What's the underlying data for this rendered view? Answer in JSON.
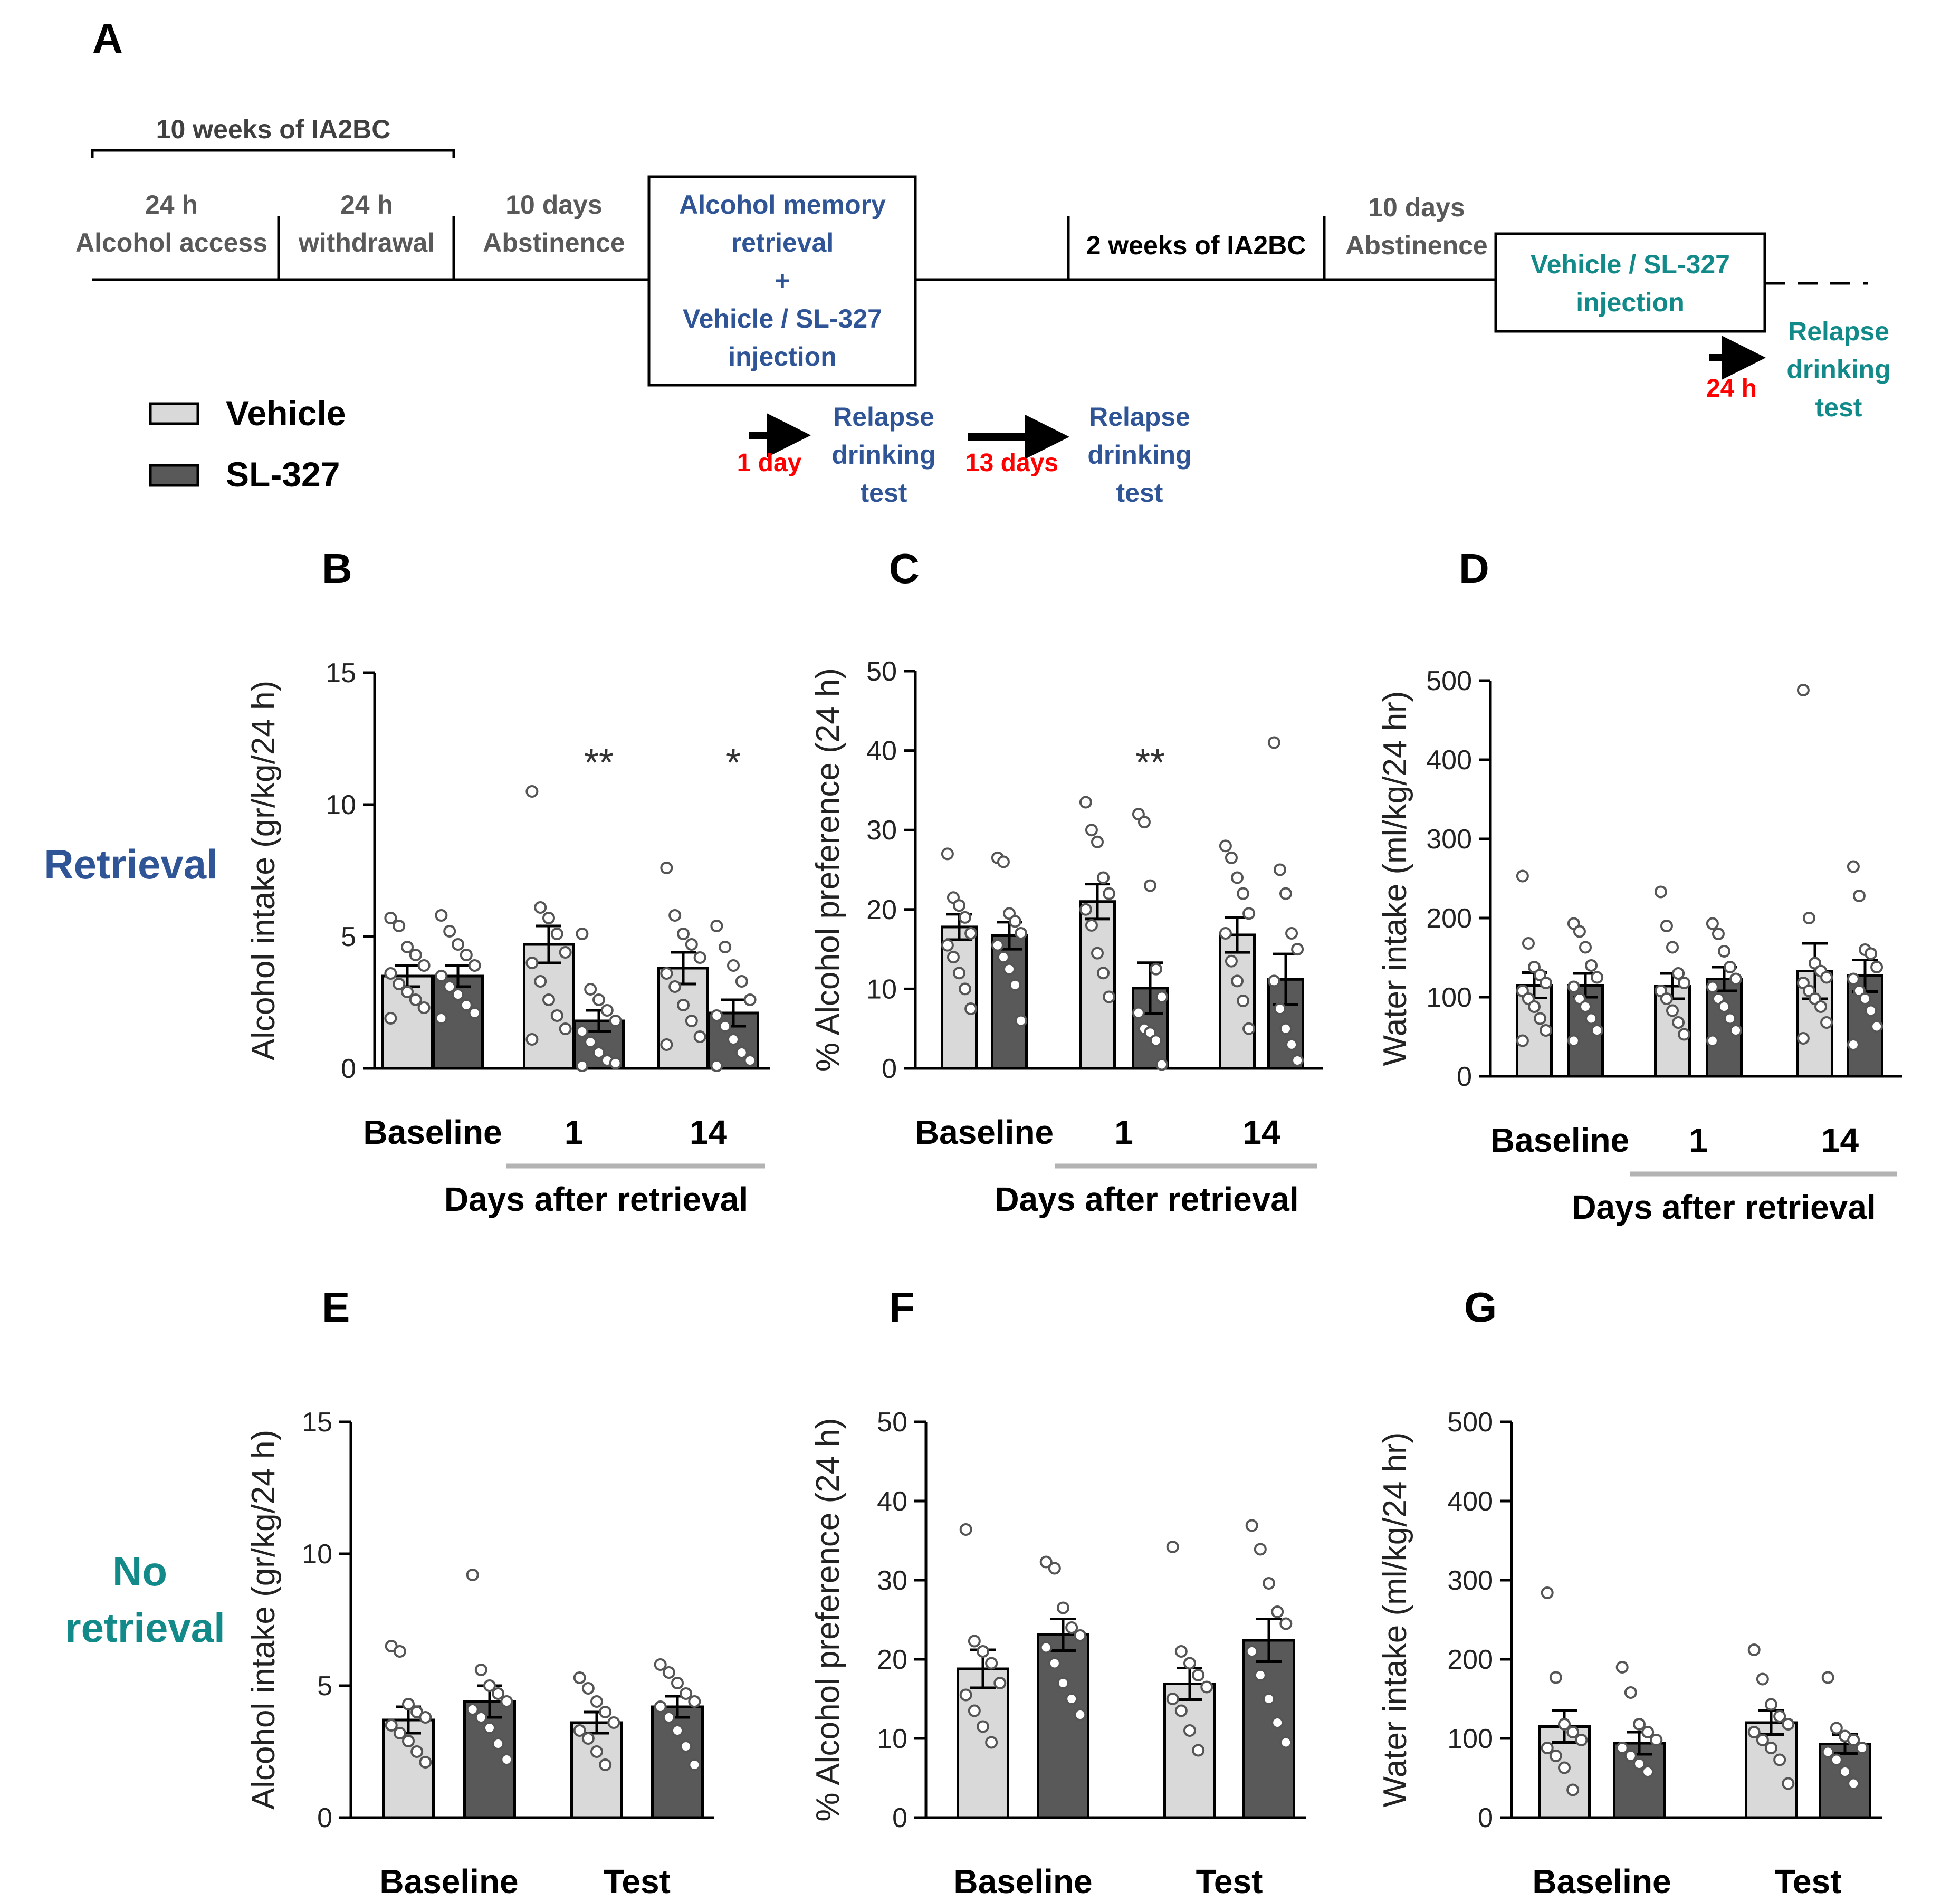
{
  "panel_a": {
    "label": "A",
    "bracket_label": "10 weeks of IA2BC",
    "phases": [
      {
        "line1": "24 h",
        "line2": "Alcohol access"
      },
      {
        "line1": "24 h",
        "line2": "withdrawal"
      },
      {
        "line1": "10 days",
        "line2": "Abstinence"
      }
    ],
    "retrieval_box": [
      "Alcohol memory",
      "retrieval",
      "+",
      "Vehicle / SL-327",
      "injection"
    ],
    "ia2bc2": "2 weeks of IA2BC",
    "abstinence2": {
      "line1": "10 days",
      "line2": "Abstinence"
    },
    "injection_box": [
      "Vehicle / SL-327",
      "injection"
    ],
    "arrow1": "1 day",
    "arrow2": "13 days",
    "arrow3": "24 h",
    "relapse_test": [
      "Relapse",
      "drinking",
      "test"
    ],
    "legend": [
      {
        "name": "Vehicle",
        "color": "#d9d9d9"
      },
      {
        "name": "SL-327",
        "color": "#595959"
      }
    ]
  },
  "row_labels": {
    "retrieval": "Retrieval",
    "no_retrieval_line1": "No",
    "no_retrieval_line2": "retrieval"
  },
  "colors": {
    "vehicle": "#d9d9d9",
    "sl327": "#595959",
    "retrieval_blue": "#2f5597",
    "teal": "#138a8a",
    "arrow_red": "#ff0000"
  },
  "chart_data": [
    {
      "panel": "B",
      "type": "bar",
      "title": "",
      "ylabel": "Alcohol intake (gr/kg/24 h)",
      "categories": [
        "Baseline",
        "1",
        "14"
      ],
      "xgroup_label": "Days after retrieval",
      "ylim": [
        0,
        15
      ],
      "yticks": [
        0,
        5,
        10,
        15
      ],
      "series": [
        {
          "name": "Vehicle",
          "values": [
            3.5,
            4.7,
            3.8
          ],
          "sem": [
            0.4,
            0.7,
            0.6
          ],
          "points": [
            [
              5.7,
              5.4,
              4.6,
              4.3,
              3.9,
              3.6,
              3.2,
              2.9,
              2.6,
              2.3,
              1.9
            ],
            [
              10.5,
              6.1,
              5.7,
              5.1,
              4.4,
              4.0,
              3.3,
              2.6,
              2.0,
              1.5,
              1.1
            ],
            [
              7.6,
              5.8,
              5.1,
              4.7,
              4.2,
              3.6,
              3.1,
              2.4,
              1.8,
              1.2,
              0.9
            ]
          ]
        },
        {
          "name": "SL-327",
          "values": [
            3.5,
            1.8,
            2.1
          ],
          "sem": [
            0.4,
            0.4,
            0.5
          ],
          "points": [
            [
              5.8,
              5.2,
              4.7,
              4.3,
              3.9,
              3.5,
              3.1,
              2.8,
              2.4,
              2.1,
              1.9
            ],
            [
              5.1,
              3.0,
              2.6,
              2.2,
              1.8,
              1.4,
              1.0,
              0.6,
              0.3,
              0.2,
              0.1
            ],
            [
              5.4,
              4.6,
              3.9,
              3.3,
              2.6,
              2.0,
              1.6,
              1.1,
              0.6,
              0.3,
              0.1
            ]
          ]
        }
      ],
      "annotations": [
        {
          "category": "1",
          "text": "**"
        },
        {
          "category": "14",
          "text": "*"
        }
      ]
    },
    {
      "panel": "C",
      "type": "bar",
      "title": "",
      "ylabel": "% Alcohol preference  (24 h)",
      "categories": [
        "Baseline",
        "1",
        "14"
      ],
      "xgroup_label": "Days after retrieval",
      "ylim": [
        0,
        50
      ],
      "yticks": [
        0,
        10,
        20,
        30,
        40,
        50
      ],
      "series": [
        {
          "name": "Vehicle",
          "values": [
            17.8,
            21.0,
            16.8
          ],
          "sem": [
            1.6,
            2.2,
            2.2
          ],
          "points": [
            [
              27.0,
              21.5,
              20.5,
              19.0,
              17.0,
              15.5,
              14.0,
              12.0,
              10.0,
              7.5
            ],
            [
              33.5,
              30.0,
              28.5,
              24.0,
              22.0,
              20.0,
              18.0,
              14.5,
              12.0,
              9.0
            ],
            [
              28.0,
              26.5,
              24.0,
              22.0,
              19.5,
              17.0,
              13.5,
              11.0,
              8.5,
              5.0
            ]
          ]
        },
        {
          "name": "SL-327",
          "values": [
            16.7,
            10.1,
            11.2
          ],
          "sem": [
            1.7,
            3.2,
            3.2
          ],
          "points": [
            [
              26.5,
              26.0,
              19.5,
              18.5,
              17.0,
              15.5,
              14.0,
              12.5,
              10.5,
              6.0
            ],
            [
              32.0,
              31.0,
              23.0,
              12.5,
              9.0,
              7.0,
              5.0,
              4.5,
              3.5,
              0.5
            ],
            [
              41.0,
              25.0,
              22.0,
              17.0,
              15.0,
              11.0,
              7.5,
              5.0,
              3.0,
              1.0
            ]
          ]
        }
      ],
      "annotations": [
        {
          "category": "1",
          "text": "**"
        }
      ]
    },
    {
      "panel": "D",
      "type": "bar",
      "title": "",
      "ylabel": "Water intake (ml/kg/24 hr)",
      "categories": [
        "Baseline",
        "1",
        "14"
      ],
      "xgroup_label": "Days after retrieval",
      "ylim": [
        0,
        500
      ],
      "yticks": [
        0,
        100,
        200,
        300,
        400,
        500
      ],
      "series": [
        {
          "name": "Vehicle",
          "values": [
            115,
            114,
            133
          ],
          "sem": [
            16,
            16,
            35
          ],
          "points": [
            [
              253,
              168,
              138,
              128,
              118,
              108,
              98,
              88,
              73,
              58,
              45
            ],
            [
              233,
              190,
              163,
              130,
              118,
              108,
              98,
              83,
              68,
              53
            ],
            [
              488,
              200,
              143,
              133,
              125,
              118,
              108,
              98,
              88,
              68,
              48
            ]
          ]
        },
        {
          "name": "SL-327",
          "values": [
            115,
            123,
            127
          ],
          "sem": [
            15,
            15,
            20
          ],
          "points": [
            [
              193,
              183,
              163,
              140,
              125,
              113,
              98,
              88,
              73,
              58,
              45
            ],
            [
              193,
              180,
              158,
              138,
              123,
              113,
              98,
              88,
              73,
              58,
              45
            ],
            [
              265,
              228,
              160,
              155,
              138,
              123,
              108,
              98,
              83,
              63,
              40
            ]
          ]
        }
      ],
      "annotations": []
    },
    {
      "panel": "E",
      "type": "bar",
      "title": "",
      "ylabel": "Alcohol intake (gr/kg/24 h)",
      "categories": [
        "Baseline",
        "Test"
      ],
      "xgroup_label": "",
      "ylim": [
        0,
        15
      ],
      "yticks": [
        0,
        5,
        10,
        15
      ],
      "series": [
        {
          "name": "Vehicle",
          "values": [
            3.7,
            3.6
          ],
          "sem": [
            0.5,
            0.4
          ],
          "points": [
            [
              6.5,
              6.3,
              4.3,
              4.0,
              3.8,
              3.5,
              3.2,
              2.9,
              2.5,
              2.1
            ],
            [
              5.3,
              4.9,
              4.4,
              4.0,
              3.6,
              3.3,
              3.0,
              2.5,
              2.0
            ]
          ]
        },
        {
          "name": "SL-327",
          "values": [
            4.4,
            4.2
          ],
          "sem": [
            0.6,
            0.4
          ],
          "points": [
            [
              9.2,
              5.6,
              5.0,
              4.7,
              4.4,
              4.1,
              3.8,
              3.4,
              2.8,
              2.2
            ],
            [
              5.8,
              5.5,
              5.1,
              4.7,
              4.4,
              4.2,
              3.8,
              3.3,
              2.7,
              2.0
            ]
          ]
        }
      ],
      "annotations": []
    },
    {
      "panel": "F",
      "type": "bar",
      "title": "",
      "ylabel": "% Alcohol preference  (24 h)",
      "categories": [
        "Baseline",
        "Test"
      ],
      "xgroup_label": "",
      "ylim": [
        0,
        50
      ],
      "yticks": [
        0,
        10,
        20,
        30,
        40,
        50
      ],
      "series": [
        {
          "name": "Vehicle",
          "values": [
            18.8,
            16.9
          ],
          "sem": [
            2.4,
            2.0
          ],
          "points": [
            [
              36.4,
              22.3,
              21.0,
              19.5,
              17.0,
              15.5,
              13.5,
              11.5,
              9.5
            ],
            [
              34.2,
              21.0,
              19.5,
              18.0,
              16.5,
              15.0,
              13.5,
              11.0,
              8.5
            ]
          ]
        },
        {
          "name": "SL-327",
          "values": [
            23.1,
            22.4
          ],
          "sem": [
            2.0,
            2.7
          ],
          "points": [
            [
              32.3,
              31.5,
              26.5,
              24.0,
              23.0,
              21.5,
              19.5,
              17.0,
              15.0,
              13.0
            ],
            [
              36.9,
              33.9,
              29.6,
              26.0,
              24.5,
              21.0,
              18.0,
              15.0,
              12.0,
              9.5
            ]
          ]
        }
      ],
      "annotations": []
    },
    {
      "panel": "G",
      "type": "bar",
      "title": "",
      "ylabel": "Water intake (ml/kg/24 hr)",
      "categories": [
        "Baseline",
        "Test"
      ],
      "xgroup_label": "",
      "ylim": [
        0,
        500
      ],
      "yticks": [
        0,
        100,
        200,
        300,
        400,
        500
      ],
      "series": [
        {
          "name": "Vehicle",
          "values": [
            115,
            120
          ],
          "sem": [
            20,
            15
          ],
          "points": [
            [
              284,
              177,
              118,
              108,
              98,
              88,
              78,
              63,
              35
            ],
            [
              212,
              175,
              143,
              128,
              118,
              108,
              98,
              88,
              73,
              43
            ]
          ]
        },
        {
          "name": "SL-327",
          "values": [
            94,
            93
          ],
          "sem": [
            14,
            12
          ],
          "points": [
            [
              190,
              158,
              118,
              108,
              98,
              88,
              78,
              68,
              58
            ],
            [
              177,
              113,
              103,
              98,
              88,
              83,
              73,
              58,
              43
            ]
          ]
        }
      ],
      "annotations": []
    }
  ]
}
